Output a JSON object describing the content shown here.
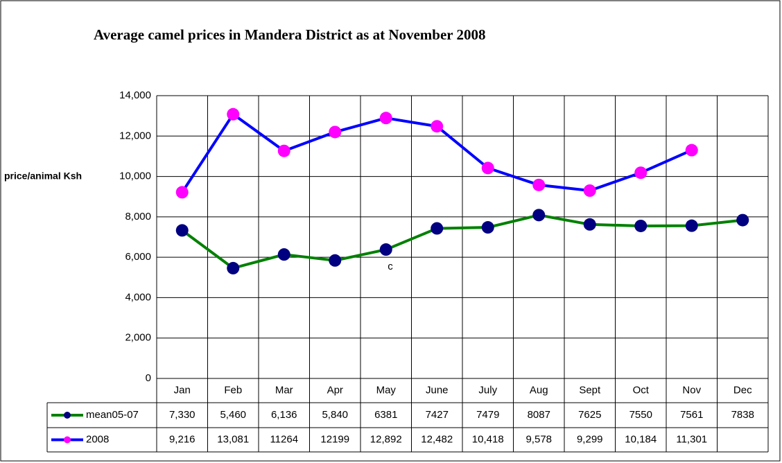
{
  "chart_data": {
    "type": "line",
    "title": "Average camel prices in Mandera District as at November 2008",
    "y_label": "price/animal Ksh",
    "annotations": [
      "c"
    ],
    "categories": [
      "Jan",
      "Feb",
      "Mar",
      "Apr",
      "May",
      "June",
      "July",
      "Aug",
      "Sept",
      "Oct",
      "Nov",
      "Dec"
    ],
    "series": [
      {
        "name": "mean05-07",
        "color": "#008000",
        "marker_color": "#000080",
        "values": [
          7330,
          5460,
          6136,
          5840,
          6381,
          7427,
          7479,
          8087,
          7625,
          7550,
          7561,
          7838
        ],
        "value_labels": [
          "7,330",
          "5,460",
          "6,136",
          "5,840",
          "6381",
          "7427",
          "7479",
          "8087",
          "7625",
          "7550",
          "7561",
          "7838"
        ]
      },
      {
        "name": "2008",
        "color": "#0000ff",
        "marker_color": "#ff00ff",
        "values": [
          9216,
          13081,
          11264,
          12199,
          12892,
          12482,
          10418,
          9578,
          9299,
          10184,
          11301,
          null
        ],
        "value_labels": [
          "9,216",
          "13,081",
          "11264",
          "12199",
          "12,892",
          "12,482",
          "10,418",
          "9,578",
          "9,299",
          "10,184",
          "11,301",
          null
        ]
      }
    ],
    "ylim": [
      0,
      14000
    ],
    "yticks": [
      0,
      {
        "value": 2000,
        "label": "2,000"
      },
      {
        "value": 4000,
        "label": "4,000"
      },
      {
        "value": 6000,
        "label": "6,000"
      },
      {
        "value": 8000,
        "label": "8,000"
      },
      {
        "value": 10000,
        "label": "10,000"
      },
      {
        "value": 12000,
        "label": "12,000"
      },
      {
        "value": 14000,
        "label": "14,000"
      }
    ],
    "grid": true
  }
}
